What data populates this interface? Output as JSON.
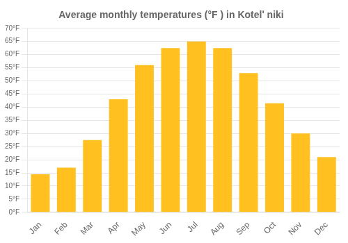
{
  "chart_data": {
    "type": "bar",
    "title": "Average monthly temperatures (°F ) in Kotelʹ niki",
    "categories": [
      "Jan",
      "Feb",
      "Mar",
      "Apr",
      "May",
      "Jun",
      "Jul",
      "Aug",
      "Sep",
      "Oct",
      "Nov",
      "Dec"
    ],
    "values": [
      14.5,
      17.0,
      27.5,
      43.0,
      56.0,
      62.5,
      65.0,
      62.5,
      53.0,
      41.5,
      30.0,
      21.0
    ],
    "color": "#FFC020",
    "ylim": [
      0,
      70
    ],
    "yticks": [
      {
        "value": 0,
        "label": "0°F"
      },
      {
        "value": 5,
        "label": "5°F"
      },
      {
        "value": 10,
        "label": "10°F"
      },
      {
        "value": 15,
        "label": "15°F"
      },
      {
        "value": 20,
        "label": "20°F"
      },
      {
        "value": 25,
        "label": "25°F"
      },
      {
        "value": 30,
        "label": "30°F"
      },
      {
        "value": 35,
        "label": "35°F"
      },
      {
        "value": 40,
        "label": "40°F"
      },
      {
        "value": 45,
        "label": "45°F"
      },
      {
        "value": 50,
        "label": "50°F"
      },
      {
        "value": 55,
        "label": "55°F"
      },
      {
        "value": 60,
        "label": "60°F"
      },
      {
        "value": 65,
        "label": "65°F"
      },
      {
        "value": 70,
        "label": "70°F"
      }
    ],
    "grid": true
  }
}
